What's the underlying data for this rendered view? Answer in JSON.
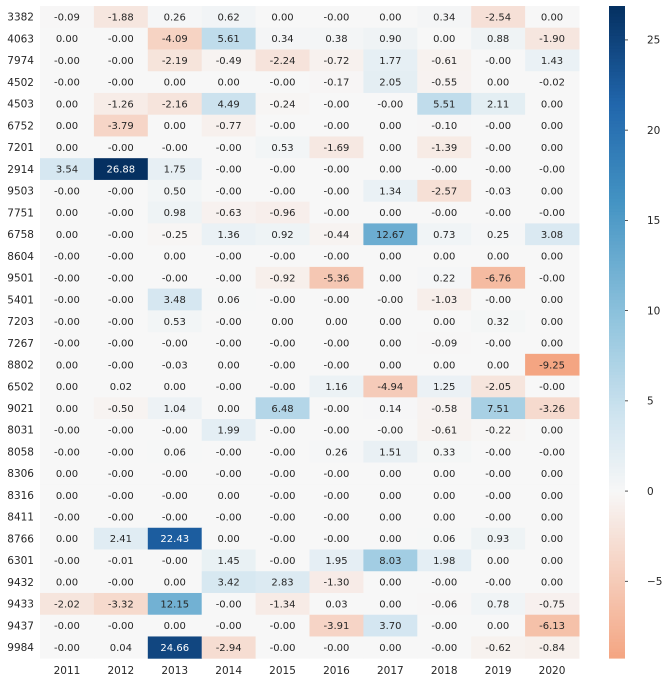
{
  "chart_data": {
    "type": "heatmap",
    "rows": [
      "3382",
      "4063",
      "7974",
      "4502",
      "4503",
      "6752",
      "7201",
      "2914",
      "9503",
      "7751",
      "6758",
      "8604",
      "9501",
      "5401",
      "7203",
      "7267",
      "8802",
      "6502",
      "9021",
      "8031",
      "8058",
      "8306",
      "8316",
      "8411",
      "8766",
      "6301",
      "9432",
      "9433",
      "9437",
      "9984"
    ],
    "columns": [
      "2011",
      "2012",
      "2013",
      "2014",
      "2015",
      "2016",
      "2017",
      "2018",
      "2019",
      "2020"
    ],
    "cells": [
      [
        "-0.09",
        "-1.88",
        "0.26",
        "0.62",
        "0.00",
        "-0.00",
        "0.00",
        "0.34",
        "-2.54",
        "0.00"
      ],
      [
        "0.00",
        "-0.00",
        "-4.09",
        "5.61",
        "0.34",
        "0.38",
        "0.90",
        "0.00",
        "0.88",
        "-1.90"
      ],
      [
        "-0.00",
        "-0.00",
        "-2.19",
        "-0.49",
        "-2.24",
        "-0.72",
        "1.77",
        "-0.61",
        "-0.00",
        "1.43"
      ],
      [
        "-0.00",
        "-0.00",
        "0.00",
        "0.00",
        "-0.00",
        "-0.17",
        "2.05",
        "-0.55",
        "0.00",
        "-0.02"
      ],
      [
        "0.00",
        "-1.26",
        "-2.16",
        "4.49",
        "-0.24",
        "-0.00",
        "-0.00",
        "5.51",
        "2.11",
        "0.00"
      ],
      [
        "0.00",
        "-3.79",
        "0.00",
        "-0.77",
        "-0.00",
        "-0.00",
        "0.00",
        "-0.10",
        "-0.00",
        "0.00"
      ],
      [
        "0.00",
        "-0.00",
        "-0.00",
        "-0.00",
        "0.53",
        "-1.69",
        "0.00",
        "-1.39",
        "-0.00",
        "0.00"
      ],
      [
        "3.54",
        "26.88",
        "1.75",
        "-0.00",
        "-0.00",
        "-0.00",
        "0.00",
        "-0.00",
        "-0.00",
        "-0.00"
      ],
      [
        "-0.00",
        "-0.00",
        "0.50",
        "-0.00",
        "-0.00",
        "-0.00",
        "1.34",
        "-2.57",
        "-0.03",
        "0.00"
      ],
      [
        "0.00",
        "-0.00",
        "0.98",
        "-0.63",
        "-0.96",
        "-0.00",
        "0.00",
        "-0.00",
        "-0.00",
        "-0.00"
      ],
      [
        "0.00",
        "-0.00",
        "-0.25",
        "1.36",
        "0.92",
        "-0.44",
        "12.67",
        "0.73",
        "0.25",
        "3.08"
      ],
      [
        "-0.00",
        "-0.00",
        "0.00",
        "-0.00",
        "-0.00",
        "-0.00",
        "0.00",
        "0.00",
        "0.00",
        "0.00"
      ],
      [
        "-0.00",
        "-0.00",
        "-0.00",
        "-0.00",
        "-0.92",
        "-5.36",
        "0.00",
        "0.22",
        "-6.76",
        "-0.00"
      ],
      [
        "-0.00",
        "-0.00",
        "3.48",
        "0.06",
        "-0.00",
        "-0.00",
        "-0.00",
        "-1.03",
        "-0.00",
        "0.00"
      ],
      [
        "-0.00",
        "-0.00",
        "0.53",
        "-0.00",
        "0.00",
        "0.00",
        "0.00",
        "0.00",
        "0.32",
        "0.00"
      ],
      [
        "-0.00",
        "-0.00",
        "-0.00",
        "-0.00",
        "-0.00",
        "-0.00",
        "0.00",
        "-0.09",
        "-0.00",
        "0.00"
      ],
      [
        "0.00",
        "-0.00",
        "-0.03",
        "0.00",
        "-0.00",
        "-0.00",
        "0.00",
        "0.00",
        "0.00",
        "-9.25"
      ],
      [
        "0.00",
        "0.02",
        "0.00",
        "-0.00",
        "-0.00",
        "1.16",
        "-4.94",
        "1.25",
        "-2.05",
        "-0.00"
      ],
      [
        "0.00",
        "-0.50",
        "1.04",
        "0.00",
        "6.48",
        "-0.00",
        "0.14",
        "-0.58",
        "7.51",
        "-3.26"
      ],
      [
        "-0.00",
        "-0.00",
        "-0.00",
        "1.99",
        "-0.00",
        "-0.00",
        "-0.00",
        "-0.61",
        "-0.22",
        "0.00"
      ],
      [
        "-0.00",
        "-0.00",
        "0.06",
        "-0.00",
        "-0.00",
        "0.26",
        "1.51",
        "0.33",
        "-0.00",
        "-0.00"
      ],
      [
        "0.00",
        "-0.00",
        "-0.00",
        "-0.00",
        "-0.00",
        "-0.00",
        "0.00",
        "0.00",
        "-0.00",
        "0.00"
      ],
      [
        "0.00",
        "-0.00",
        "-0.00",
        "0.00",
        "-0.00",
        "-0.00",
        "0.00",
        "0.00",
        "-0.00",
        "0.00"
      ],
      [
        "-0.00",
        "-0.00",
        "-0.00",
        "-0.00",
        "-0.00",
        "-0.00",
        "0.00",
        "0.00",
        "-0.00",
        "0.00"
      ],
      [
        "0.00",
        "2.41",
        "22.43",
        "0.00",
        "-0.00",
        "-0.00",
        "0.00",
        "0.06",
        "0.93",
        "0.00"
      ],
      [
        "-0.00",
        "-0.01",
        "-0.00",
        "1.45",
        "-0.00",
        "1.95",
        "8.03",
        "1.98",
        "0.00",
        "0.00"
      ],
      [
        "0.00",
        "-0.00",
        "0.00",
        "3.42",
        "2.83",
        "-1.30",
        "0.00",
        "-0.00",
        "-0.00",
        "0.00"
      ],
      [
        "-2.02",
        "-3.32",
        "12.15",
        "-0.00",
        "-1.34",
        "0.03",
        "0.00",
        "-0.06",
        "0.78",
        "-0.75"
      ],
      [
        "-0.00",
        "-0.00",
        "0.00",
        "-0.00",
        "-0.00",
        "-3.91",
        "3.70",
        "-0.00",
        "0.00",
        "-6.13"
      ],
      [
        "-0.00",
        "0.04",
        "24.66",
        "-2.94",
        "-0.00",
        "-0.00",
        "0.00",
        "-0.00",
        "-0.62",
        "-0.84"
      ]
    ],
    "colorbar": {
      "ticks": [
        -5,
        0,
        5,
        10,
        15,
        20,
        25
      ],
      "vmin": -9.25,
      "vmax": 26.88,
      "center": 0,
      "low_color": "#f4a582",
      "mid_color": "#f7f7f7",
      "high_color": "#053061"
    },
    "xlabel": "",
    "ylabel": "",
    "title": ""
  }
}
